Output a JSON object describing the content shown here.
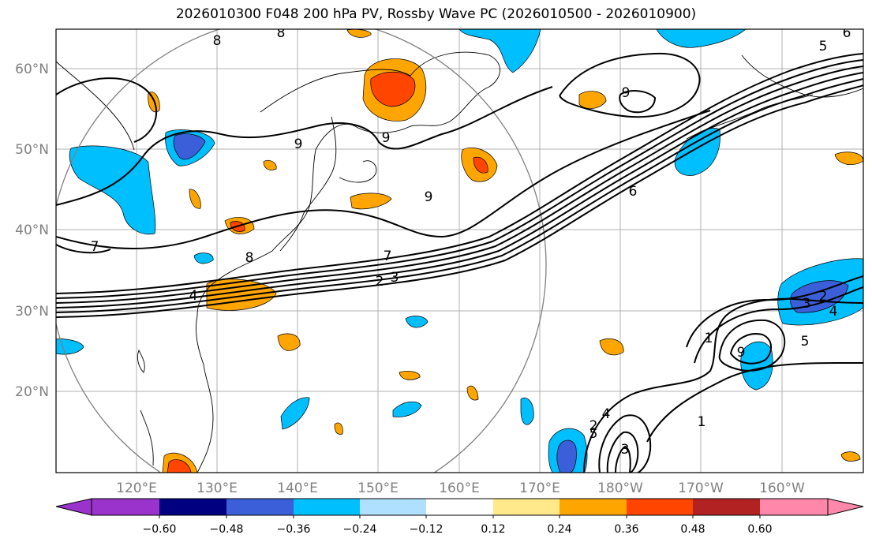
{
  "title": "2026010300 F048 200 hPa PV, Rossby Wave PC (2026010500 - 2026010900)",
  "map": {
    "lon_ticks": [
      "120°E",
      "130°E",
      "140°E",
      "150°E",
      "160°E",
      "170°E",
      "180°W",
      "170°W",
      "160°W"
    ],
    "lat_ticks": [
      "60°N",
      "50°N",
      "40°N",
      "30°N",
      "20°N"
    ],
    "contour_labels": [
      "8",
      "8",
      "6",
      "5",
      "9",
      "9",
      "9",
      "9",
      "7",
      "8",
      "7",
      "6",
      "4",
      "2",
      "3",
      "3",
      "2",
      "4",
      "5",
      "9",
      "1",
      "1",
      "2",
      "3",
      "4",
      "5"
    ]
  },
  "colorbar": {
    "labels": [
      "−0.60",
      "−0.48",
      "−0.36",
      "−0.24",
      "−0.12",
      "0.12",
      "0.24",
      "0.36",
      "0.48",
      "0.60"
    ],
    "colors": [
      "#9933cc",
      "#000080",
      "#3a5fd9",
      "#00bfff",
      "#b0e0ff",
      "#ffffff",
      "#ffe98a",
      "#ffa500",
      "#ff4500",
      "#b22222",
      "#ff88aa"
    ]
  }
}
